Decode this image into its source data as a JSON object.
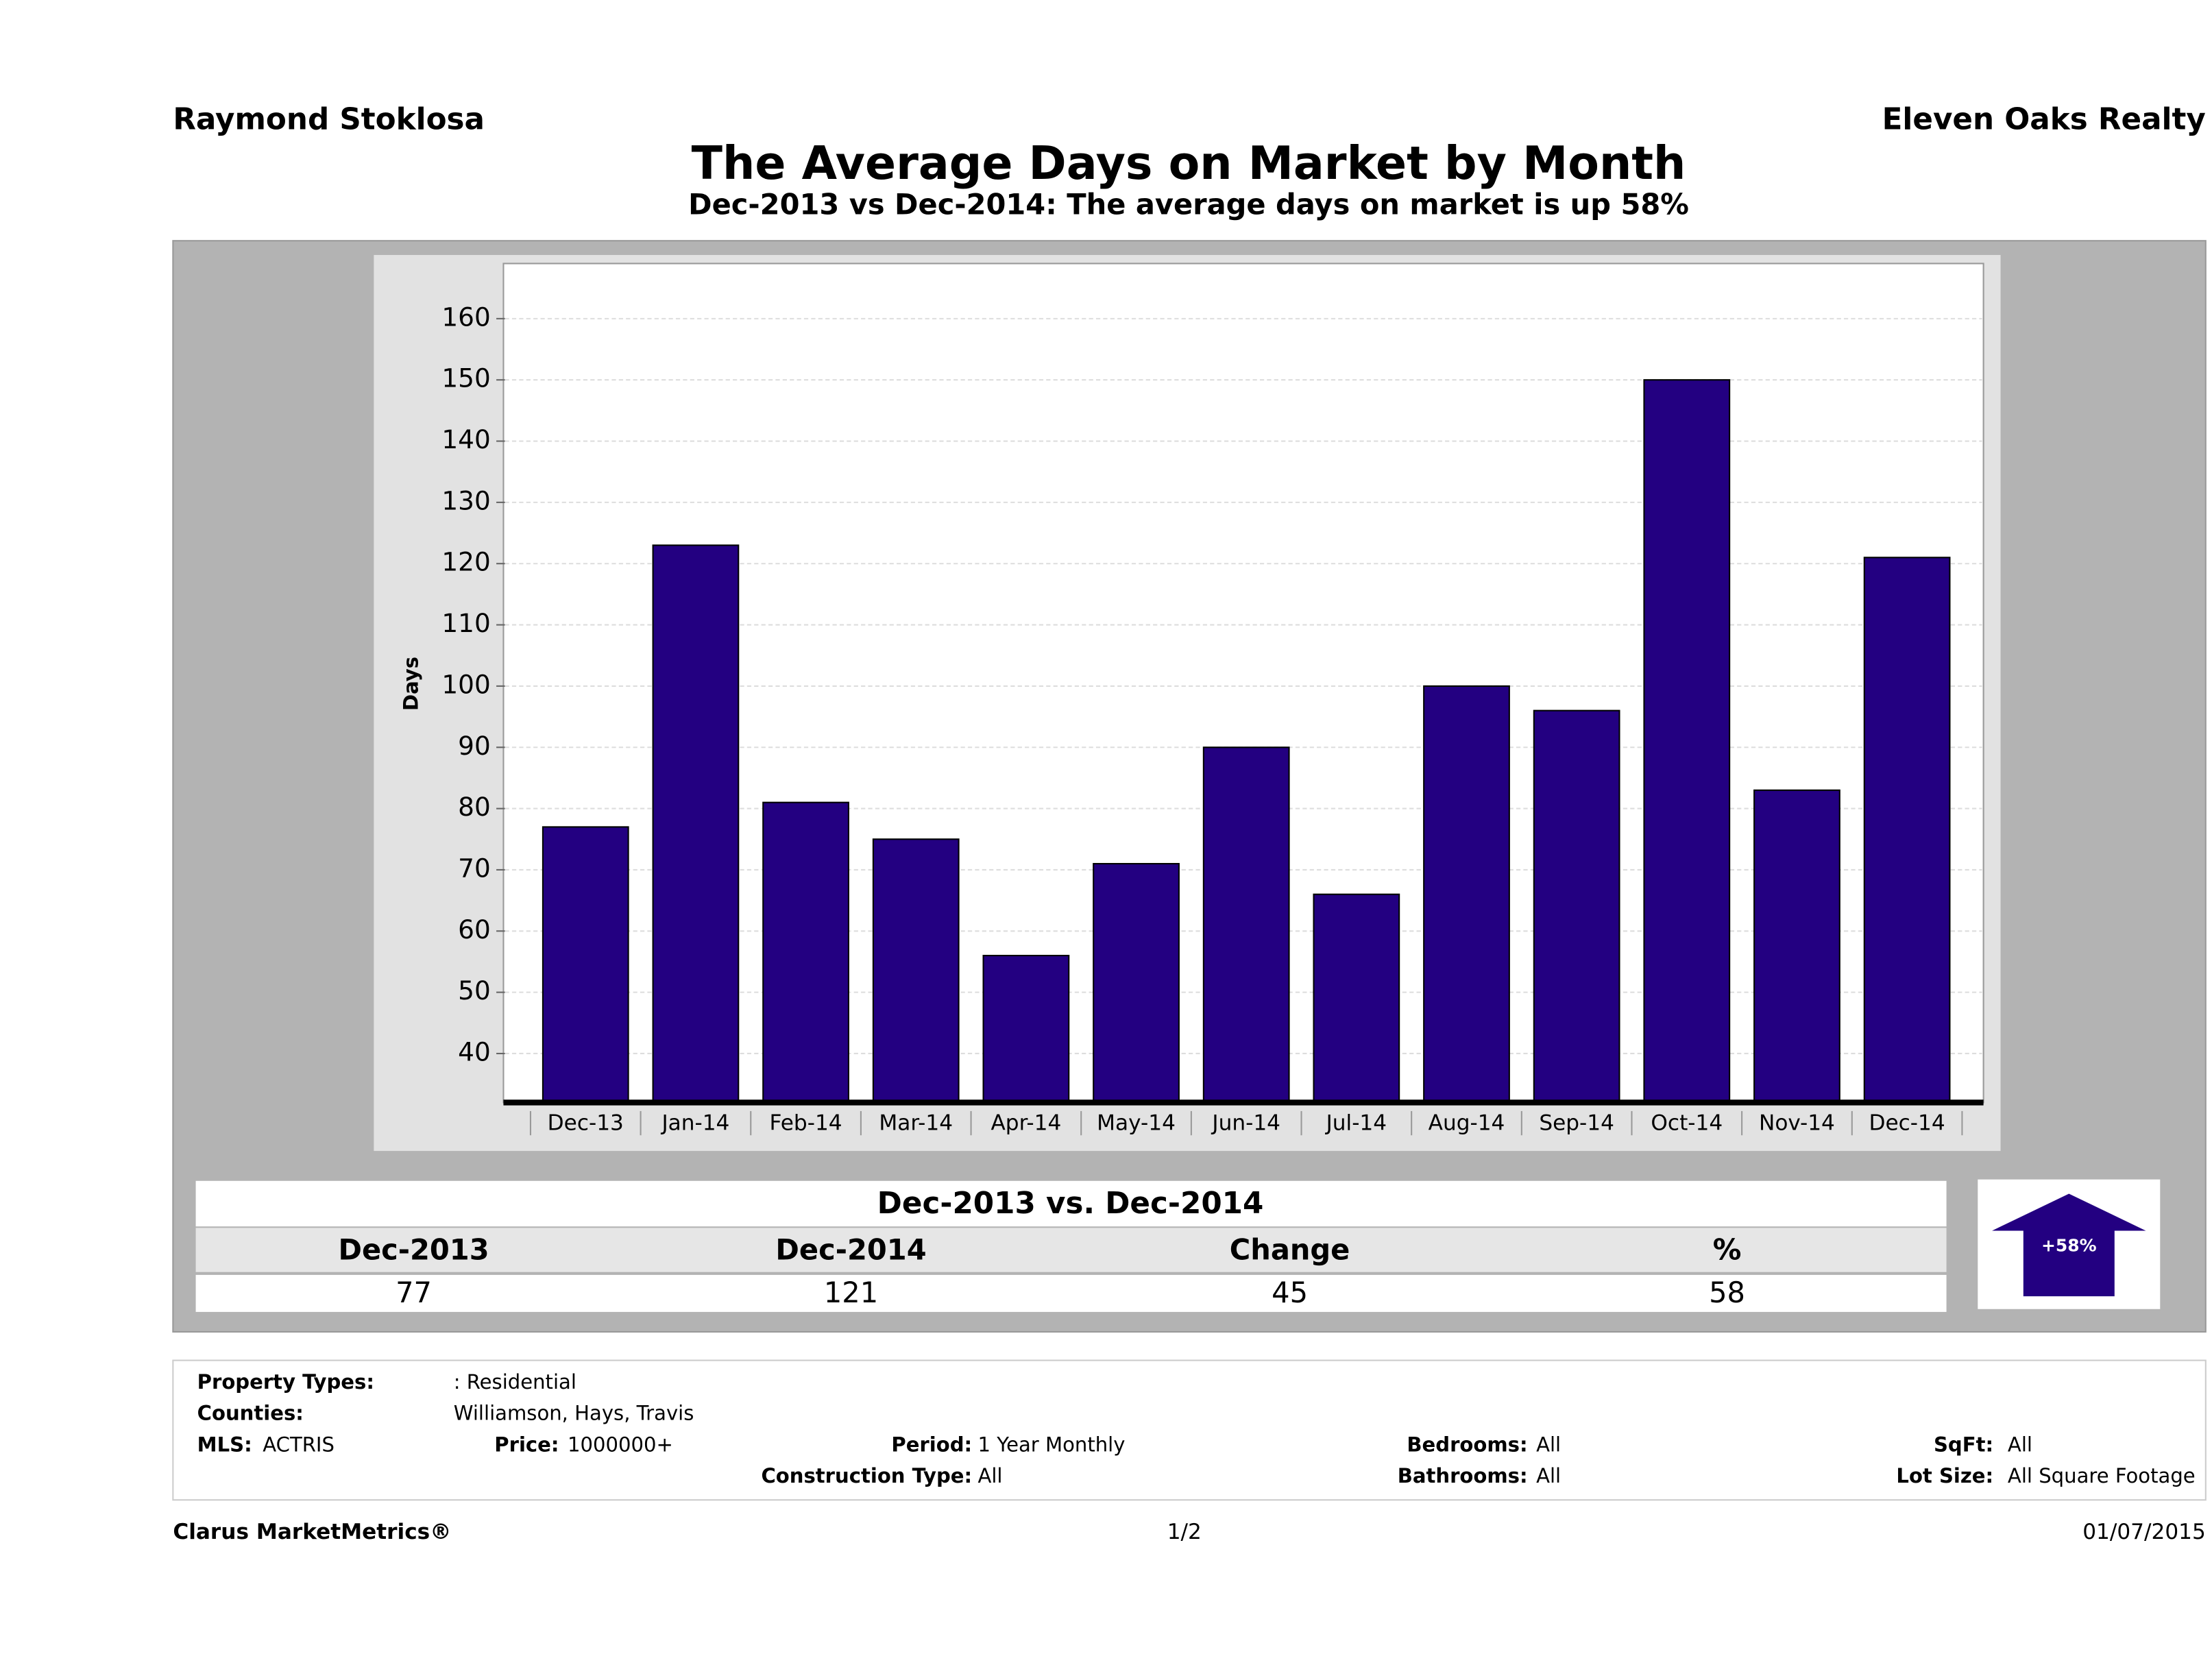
{
  "header": {
    "agent": "Raymond Stoklosa",
    "company": "Eleven Oaks Realty"
  },
  "chart_data": {
    "type": "bar",
    "title": "The Average Days on Market by Month",
    "subtitle": "Dec-2013 vs Dec-2014: The average days on market is up 58%",
    "y_label": "Days",
    "categories": [
      "Dec-13",
      "Jan-14",
      "Feb-14",
      "Mar-14",
      "Apr-14",
      "May-14",
      "Jun-14",
      "Jul-14",
      "Aug-14",
      "Sep-14",
      "Oct-14",
      "Nov-14",
      "Dec-14"
    ],
    "values": [
      77,
      123,
      81,
      75,
      56,
      71,
      90,
      66,
      100,
      96,
      150,
      83,
      121
    ],
    "color": "#230081",
    "ylim": [
      32,
      169
    ],
    "yticks": [
      40,
      50,
      60,
      70,
      80,
      90,
      100,
      110,
      120,
      130,
      140,
      150,
      160
    ],
    "grid": true
  },
  "summary": {
    "title": "Dec-2013 vs. Dec-2014",
    "headers": [
      "Dec-2013",
      "Dec-2014",
      "Change",
      "%"
    ],
    "values": [
      77,
      121,
      45,
      58
    ],
    "badge": "+58%"
  },
  "criteria": [
    {
      "label": "Property Types:",
      "value": ": Residential"
    },
    {
      "label": "Counties:",
      "value": "Williamson, Hays, Travis"
    },
    {
      "label": "MLS:",
      "value": "ACTRIS"
    },
    {
      "label": "Price:",
      "value": "1000000+"
    },
    {
      "label": "Period:",
      "value": "1 Year Monthly"
    },
    {
      "label": "Construction Type:",
      "value": "All"
    },
    {
      "label": "Bedrooms:",
      "value": "All"
    },
    {
      "label": "Bathrooms:",
      "value": "All"
    },
    {
      "label": "SqFt:",
      "value": "All"
    },
    {
      "label": "Lot Size:",
      "value": "All Square Footage"
    }
  ],
  "footer": {
    "left": "Clarus MarketMetrics®",
    "center": "1/2",
    "right": "01/07/2015"
  }
}
